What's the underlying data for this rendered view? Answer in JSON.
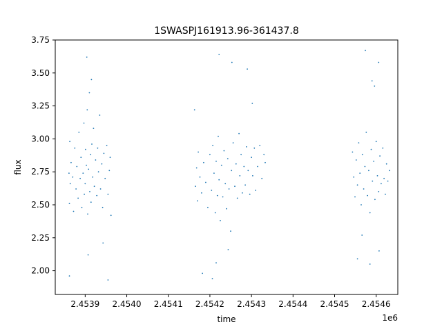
{
  "chart_data": {
    "type": "scatter",
    "title": "1SWASPJ161913.96-361437.8",
    "xlabel": "time",
    "ylabel": "flux",
    "x_offset_label": "1e6",
    "xlim": [
      2453828,
      2454652
    ],
    "ylim": [
      1.82,
      3.75
    ],
    "x_ticks": [
      {
        "value": 2453900,
        "label": "2.4539"
      },
      {
        "value": 2454000,
        "label": "2.4540"
      },
      {
        "value": 2454100,
        "label": "2.4541"
      },
      {
        "value": 2454200,
        "label": "2.4542"
      },
      {
        "value": 2454300,
        "label": "2.4543"
      },
      {
        "value": 2454400,
        "label": "2.4544"
      },
      {
        "value": 2454500,
        "label": "2.4545"
      },
      {
        "value": 2454600,
        "label": "2.4546"
      }
    ],
    "y_ticks": [
      {
        "value": 2.0,
        "label": "2.00"
      },
      {
        "value": 2.25,
        "label": "2.25"
      },
      {
        "value": 2.5,
        "label": "2.50"
      },
      {
        "value": 2.75,
        "label": "2.75"
      },
      {
        "value": 3.0,
        "label": "3.00"
      },
      {
        "value": 3.25,
        "label": "3.25"
      },
      {
        "value": 3.5,
        "label": "3.50"
      },
      {
        "value": 3.75,
        "label": "3.75"
      }
    ],
    "grid": false,
    "series_color": "#1f77b4",
    "points": [
      [
        2453861,
        2.74
      ],
      [
        2453862,
        2.51
      ],
      [
        2453863,
        2.98
      ],
      [
        2453864,
        2.66
      ],
      [
        2453866,
        2.82
      ],
      [
        2453870,
        2.71
      ],
      [
        2453872,
        2.45
      ],
      [
        2453875,
        2.93
      ],
      [
        2453878,
        2.62
      ],
      [
        2453880,
        2.79
      ],
      [
        2453883,
        2.55
      ],
      [
        2453885,
        3.05
      ],
      [
        2453888,
        2.7
      ],
      [
        2453890,
        2.86
      ],
      [
        2453892,
        2.48
      ],
      [
        2453895,
        2.74
      ],
      [
        2453897,
        3.12
      ],
      [
        2453898,
        2.58
      ],
      [
        2453900,
        2.66
      ],
      [
        2453901,
        2.92
      ],
      [
        2453903,
        2.8
      ],
      [
        2453905,
        3.22
      ],
      [
        2453906,
        2.43
      ],
      [
        2453908,
        2.77
      ],
      [
        2453910,
        3.35
      ],
      [
        2453911,
        2.6
      ],
      [
        2453913,
        2.88
      ],
      [
        2453914,
        2.52
      ],
      [
        2453916,
        2.96
      ],
      [
        2453918,
        2.71
      ],
      [
        2453920,
        3.08
      ],
      [
        2453922,
        2.64
      ],
      [
        2453925,
        2.84
      ],
      [
        2453928,
        2.57
      ],
      [
        2453930,
        2.93
      ],
      [
        2453932,
        2.75
      ],
      [
        2453935,
        3.18
      ],
      [
        2453937,
        2.62
      ],
      [
        2453940,
        2.81
      ],
      [
        2453942,
        2.48
      ],
      [
        2453945,
        2.89
      ],
      [
        2453948,
        2.7
      ],
      [
        2453952,
        2.95
      ],
      [
        2453955,
        2.58
      ],
      [
        2453958,
        2.76
      ],
      [
        2453960,
        2.86
      ],
      [
        2453962,
        2.42
      ],
      [
        2453904,
        3.62
      ],
      [
        2453907,
        2.12
      ],
      [
        2453955,
        1.93
      ],
      [
        2453862,
        1.96
      ],
      [
        2453943,
        2.21
      ],
      [
        2453915,
        3.45
      ],
      [
        2454163,
        3.22
      ],
      [
        2454165,
        2.64
      ],
      [
        2454168,
        2.78
      ],
      [
        2454170,
        2.53
      ],
      [
        2454172,
        2.9
      ],
      [
        2454176,
        2.71
      ],
      [
        2454180,
        2.59
      ],
      [
        2454185,
        2.82
      ],
      [
        2454190,
        2.67
      ],
      [
        2454195,
        2.48
      ],
      [
        2454200,
        2.88
      ],
      [
        2454204,
        2.61
      ],
      [
        2454207,
        2.95
      ],
      [
        2454210,
        2.74
      ],
      [
        2454213,
        2.44
      ],
      [
        2454215,
        2.83
      ],
      [
        2454218,
        2.57
      ],
      [
        2454220,
        3.02
      ],
      [
        2454222,
        2.69
      ],
      [
        2454225,
        2.38
      ],
      [
        2454228,
        2.8
      ],
      [
        2454231,
        2.56
      ],
      [
        2454234,
        2.91
      ],
      [
        2454237,
        2.66
      ],
      [
        2454240,
        2.47
      ],
      [
        2454243,
        2.85
      ],
      [
        2454246,
        2.62
      ],
      [
        2454250,
        2.3
      ],
      [
        2454252,
        2.76
      ],
      [
        2454256,
        2.97
      ],
      [
        2454260,
        2.64
      ],
      [
        2454263,
        2.81
      ],
      [
        2454266,
        2.55
      ],
      [
        2454270,
        3.04
      ],
      [
        2454272,
        2.72
      ],
      [
        2454275,
        2.88
      ],
      [
        2454278,
        2.59
      ],
      [
        2454282,
        2.79
      ],
      [
        2454285,
        2.65
      ],
      [
        2454288,
        2.94
      ],
      [
        2454292,
        2.76
      ],
      [
        2454296,
        2.58
      ],
      [
        2454300,
        2.86
      ],
      [
        2454303,
        2.72
      ],
      [
        2454307,
        2.93
      ],
      [
        2454310,
        2.61
      ],
      [
        2454315,
        2.79
      ],
      [
        2454320,
        2.95
      ],
      [
        2454325,
        2.7
      ],
      [
        2454330,
        2.88
      ],
      [
        2454333,
        2.82
      ],
      [
        2454206,
        1.94
      ],
      [
        2454222,
        3.64
      ],
      [
        2454215,
        2.06
      ],
      [
        2454253,
        3.58
      ],
      [
        2454290,
        3.53
      ],
      [
        2454302,
        3.27
      ],
      [
        2454244,
        2.16
      ],
      [
        2454182,
        1.98
      ],
      [
        2454543,
        2.9
      ],
      [
        2454546,
        2.71
      ],
      [
        2454549,
        2.56
      ],
      [
        2454552,
        2.84
      ],
      [
        2454555,
        2.65
      ],
      [
        2454558,
        2.97
      ],
      [
        2454561,
        2.74
      ],
      [
        2454564,
        2.5
      ],
      [
        2454567,
        2.88
      ],
      [
        2454570,
        2.62
      ],
      [
        2454573,
        2.79
      ],
      [
        2454576,
        3.05
      ],
      [
        2454579,
        2.57
      ],
      [
        2454582,
        2.76
      ],
      [
        2454585,
        2.44
      ],
      [
        2454588,
        2.92
      ],
      [
        2454591,
        2.68
      ],
      [
        2454594,
        2.83
      ],
      [
        2454597,
        2.54
      ],
      [
        2454600,
        2.98
      ],
      [
        2454603,
        2.72
      ],
      [
        2454606,
        2.6
      ],
      [
        2454609,
        2.87
      ],
      [
        2454612,
        2.66
      ],
      [
        2454616,
        2.93
      ],
      [
        2454619,
        2.7
      ],
      [
        2454622,
        2.58
      ],
      [
        2454625,
        2.81
      ],
      [
        2454628,
        2.68
      ],
      [
        2454632,
        2.76
      ],
      [
        2454574,
        3.67
      ],
      [
        2454585,
        2.05
      ],
      [
        2454596,
        3.4
      ],
      [
        2454606,
        3.58
      ],
      [
        2454607,
        2.15
      ],
      [
        2454590,
        3.44
      ],
      [
        2454566,
        2.27
      ],
      [
        2454555,
        2.09
      ]
    ]
  }
}
